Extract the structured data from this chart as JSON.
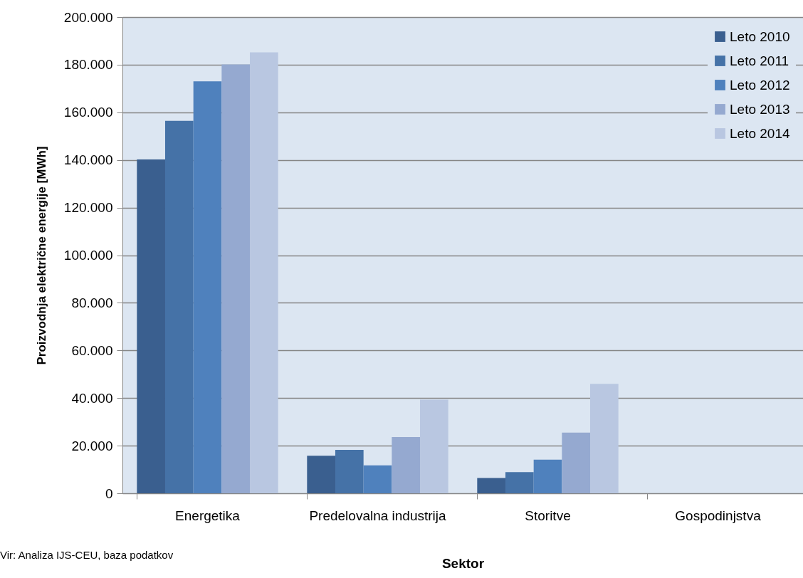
{
  "chart_data": {
    "type": "bar",
    "xlabel": "Sektor",
    "ylabel": "Proizvodnja električne energije [MWh]",
    "categories": [
      "Energetika",
      "Predelovalna industrija",
      "Storitve",
      "Gospodinjstva"
    ],
    "series": [
      {
        "name": "Leto 2010",
        "color": "#3a5f8f",
        "values": [
          140200,
          15800,
          6400,
          0
        ]
      },
      {
        "name": "Leto 2011",
        "color": "#4572a7",
        "values": [
          156400,
          18200,
          8900,
          0
        ]
      },
      {
        "name": "Leto 2012",
        "color": "#4f81bd",
        "values": [
          173000,
          11700,
          14100,
          0
        ]
      },
      {
        "name": "Leto 2013",
        "color": "#95a9d0",
        "values": [
          180100,
          23600,
          25500,
          0
        ]
      },
      {
        "name": "Leto 2014",
        "color": "#b9c7e1",
        "values": [
          185200,
          39300,
          46000,
          0
        ]
      }
    ],
    "ylim": [
      0,
      200000
    ],
    "yticks": [
      {
        "value": 0,
        "label": "0"
      },
      {
        "value": 20000,
        "label": "20.000"
      },
      {
        "value": 40000,
        "label": "40.000"
      },
      {
        "value": 60000,
        "label": "60.000"
      },
      {
        "value": 80000,
        "label": "80.000"
      },
      {
        "value": 100000,
        "label": "100.000"
      },
      {
        "value": 120000,
        "label": "120.000"
      },
      {
        "value": 140000,
        "label": "140.000"
      },
      {
        "value": 160000,
        "label": "160.000"
      },
      {
        "value": 180000,
        "label": "180.000"
      },
      {
        "value": 200000,
        "label": "200.000"
      }
    ],
    "grid": "y",
    "legend": "top right",
    "annotations": [
      "Vir: Analiza IJS-CEU, baza podatkov"
    ]
  }
}
